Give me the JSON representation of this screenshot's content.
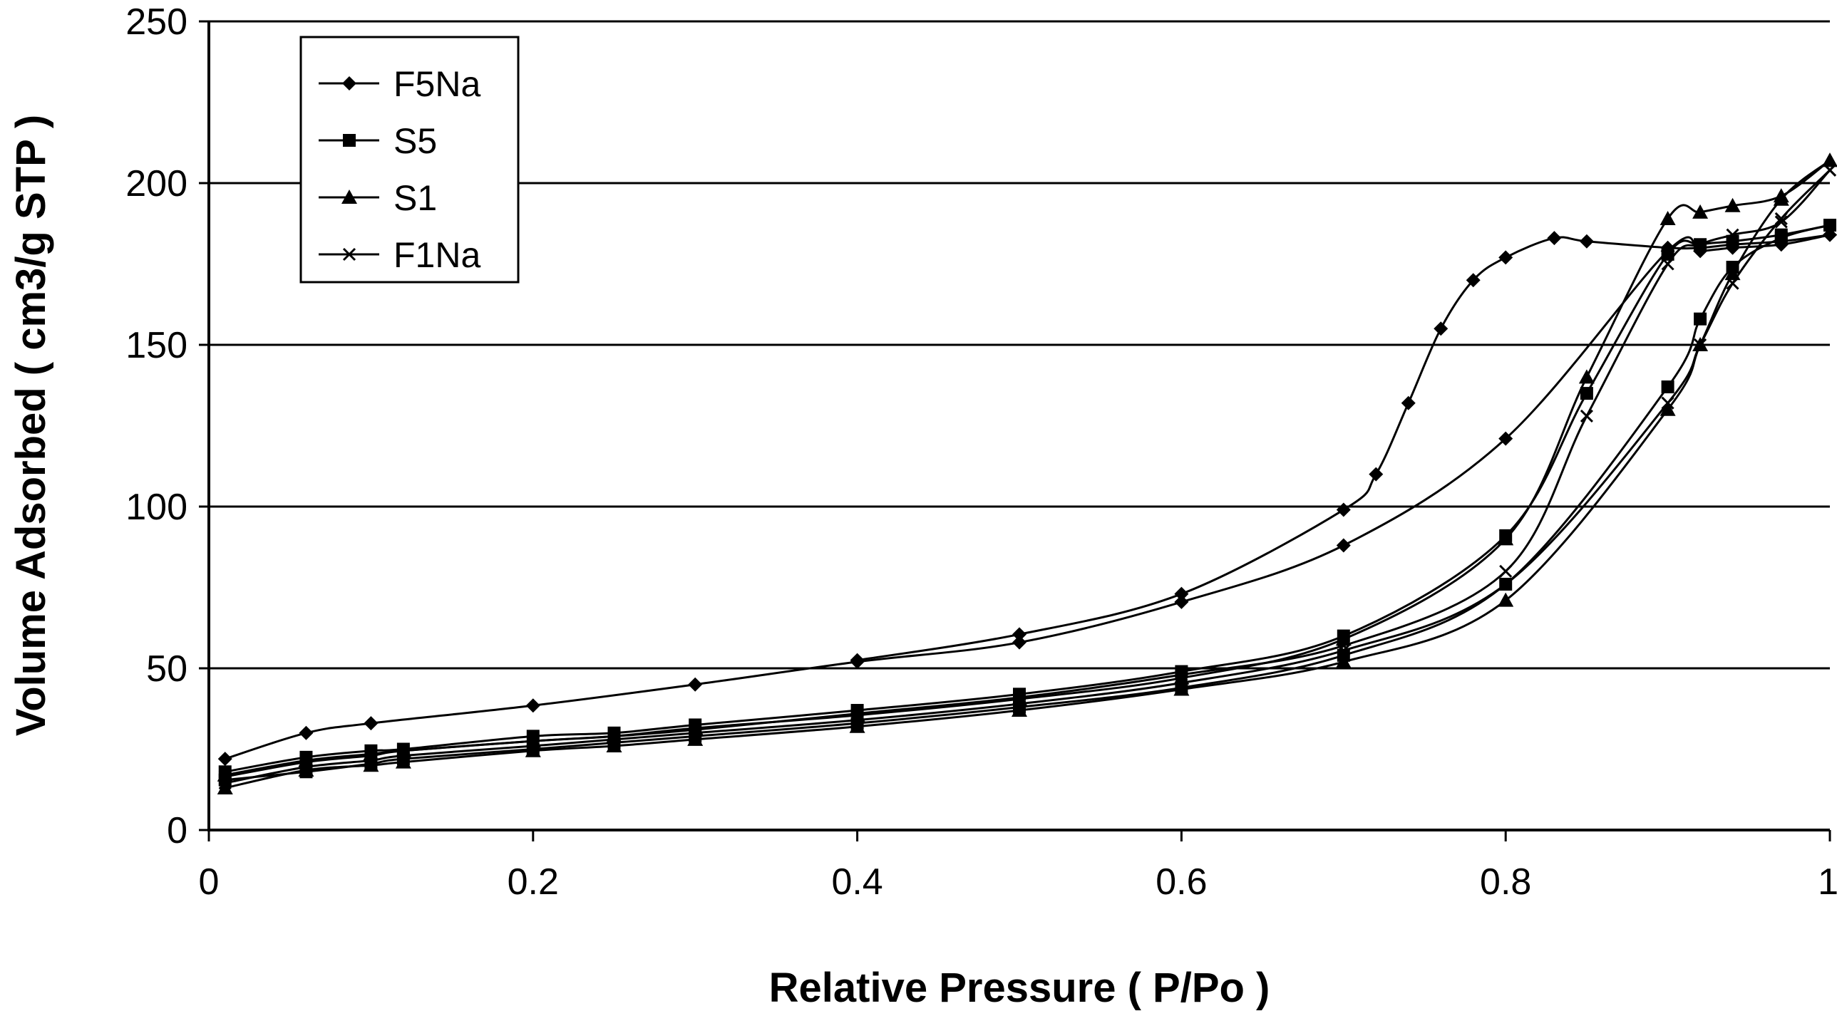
{
  "chart_data": {
    "type": "line",
    "title": "",
    "xlabel": "Relative Pressure ( P/Po )",
    "ylabel": "Volume Adsorbed ( cm3/g STP )",
    "xlim": [
      0,
      1
    ],
    "ylim": [
      0,
      250
    ],
    "xticks": [
      0,
      0.2,
      0.4,
      0.6,
      0.8,
      1
    ],
    "xtick_labels": [
      "0",
      "0.2",
      "0.4",
      "0.6",
      "0.8",
      "1"
    ],
    "yticks": [
      0,
      50,
      100,
      150,
      200,
      250
    ],
    "ytick_labels": [
      "0",
      "50",
      "100",
      "150",
      "200",
      "250"
    ],
    "grid": "horizontal",
    "legend_position": "top-left",
    "series": [
      {
        "name": "F5Na",
        "marker": "diamond",
        "adsorption": [
          [
            0.01,
            22
          ],
          [
            0.06,
            30
          ],
          [
            0.1,
            33
          ],
          [
            0.2,
            38.5
          ],
          [
            0.3,
            45
          ],
          [
            0.4,
            52
          ],
          [
            0.5,
            58
          ],
          [
            0.6,
            70.5
          ],
          [
            0.7,
            88
          ],
          [
            0.8,
            121
          ],
          [
            0.9,
            179
          ],
          [
            0.92,
            179
          ],
          [
            0.94,
            180
          ],
          [
            0.97,
            181
          ],
          [
            1.0,
            184
          ]
        ],
        "desorption": [
          [
            1.0,
            184
          ],
          [
            0.97,
            182
          ],
          [
            0.94,
            181
          ],
          [
            0.92,
            180
          ],
          [
            0.9,
            180
          ],
          [
            0.85,
            182
          ],
          [
            0.83,
            183
          ],
          [
            0.8,
            177
          ],
          [
            0.78,
            170
          ],
          [
            0.76,
            155
          ],
          [
            0.74,
            132
          ],
          [
            0.72,
            110
          ],
          [
            0.7,
            99
          ],
          [
            0.6,
            73
          ],
          [
            0.5,
            60.5
          ],
          [
            0.4,
            52.5
          ]
        ]
      },
      {
        "name": "S5",
        "marker": "square",
        "adsorption": [
          [
            0.01,
            15.5
          ],
          [
            0.06,
            18
          ],
          [
            0.1,
            20.5
          ],
          [
            0.12,
            22
          ],
          [
            0.2,
            25
          ],
          [
            0.25,
            27
          ],
          [
            0.3,
            29
          ],
          [
            0.4,
            33
          ],
          [
            0.5,
            38
          ],
          [
            0.6,
            44
          ],
          [
            0.7,
            54
          ],
          [
            0.8,
            76
          ],
          [
            0.9,
            137
          ],
          [
            0.92,
            158
          ],
          [
            0.94,
            174
          ],
          [
            0.97,
            183
          ],
          [
            1.0,
            187
          ]
        ],
        "desorption": [
          [
            1.0,
            187
          ],
          [
            0.97,
            184
          ],
          [
            0.94,
            182
          ],
          [
            0.92,
            181
          ],
          [
            0.9,
            178
          ],
          [
            0.85,
            135
          ],
          [
            0.8,
            91
          ],
          [
            0.7,
            60
          ],
          [
            0.6,
            49
          ],
          [
            0.5,
            42
          ],
          [
            0.4,
            37
          ],
          [
            0.3,
            32.5
          ],
          [
            0.25,
            30
          ],
          [
            0.2,
            29
          ],
          [
            0.12,
            25
          ],
          [
            0.1,
            24.5
          ],
          [
            0.06,
            22.5
          ],
          [
            0.01,
            18
          ]
        ]
      },
      {
        "name": "S1",
        "marker": "triangle",
        "adsorption": [
          [
            0.01,
            13
          ],
          [
            0.06,
            18.5
          ],
          [
            0.1,
            20
          ],
          [
            0.12,
            21
          ],
          [
            0.2,
            24.5
          ],
          [
            0.25,
            26
          ],
          [
            0.3,
            28
          ],
          [
            0.4,
            32
          ],
          [
            0.5,
            37
          ],
          [
            0.6,
            43.5
          ],
          [
            0.7,
            52
          ],
          [
            0.8,
            71
          ],
          [
            0.9,
            130
          ],
          [
            0.92,
            150
          ],
          [
            0.94,
            172
          ],
          [
            0.97,
            195
          ],
          [
            1.0,
            207
          ]
        ],
        "desorption": [
          [
            1.0,
            207
          ],
          [
            0.97,
            196
          ],
          [
            0.94,
            193
          ],
          [
            0.92,
            191
          ],
          [
            0.9,
            189
          ],
          [
            0.85,
            140
          ],
          [
            0.8,
            90
          ],
          [
            0.7,
            59
          ],
          [
            0.6,
            47
          ],
          [
            0.5,
            40.5
          ],
          [
            0.4,
            35.5
          ],
          [
            0.3,
            31.5
          ],
          [
            0.25,
            29
          ],
          [
            0.2,
            27.5
          ],
          [
            0.12,
            24.5
          ],
          [
            0.1,
            23.5
          ],
          [
            0.06,
            21.5
          ],
          [
            0.01,
            17
          ]
        ]
      },
      {
        "name": "F1Na",
        "marker": "x",
        "adsorption": [
          [
            0.01,
            14.5
          ],
          [
            0.06,
            19.5
          ],
          [
            0.1,
            21.5
          ],
          [
            0.12,
            23
          ],
          [
            0.2,
            26
          ],
          [
            0.25,
            28
          ],
          [
            0.3,
            30
          ],
          [
            0.4,
            34
          ],
          [
            0.5,
            39
          ],
          [
            0.6,
            45.5
          ],
          [
            0.7,
            55.5
          ],
          [
            0.8,
            76
          ],
          [
            0.9,
            132
          ],
          [
            0.92,
            150
          ],
          [
            0.94,
            169
          ],
          [
            0.97,
            189
          ],
          [
            1.0,
            204
          ]
        ],
        "desorption": [
          [
            1.0,
            204
          ],
          [
            0.97,
            188
          ],
          [
            0.94,
            184
          ],
          [
            0.92,
            181
          ],
          [
            0.9,
            175
          ],
          [
            0.85,
            128
          ],
          [
            0.8,
            80
          ],
          [
            0.7,
            57
          ],
          [
            0.6,
            48
          ],
          [
            0.5,
            41
          ],
          [
            0.4,
            36
          ],
          [
            0.3,
            31
          ],
          [
            0.25,
            29
          ],
          [
            0.2,
            27.5
          ],
          [
            0.12,
            24.5
          ],
          [
            0.1,
            23
          ],
          [
            0.06,
            21
          ],
          [
            0.01,
            16.5
          ]
        ]
      }
    ]
  }
}
